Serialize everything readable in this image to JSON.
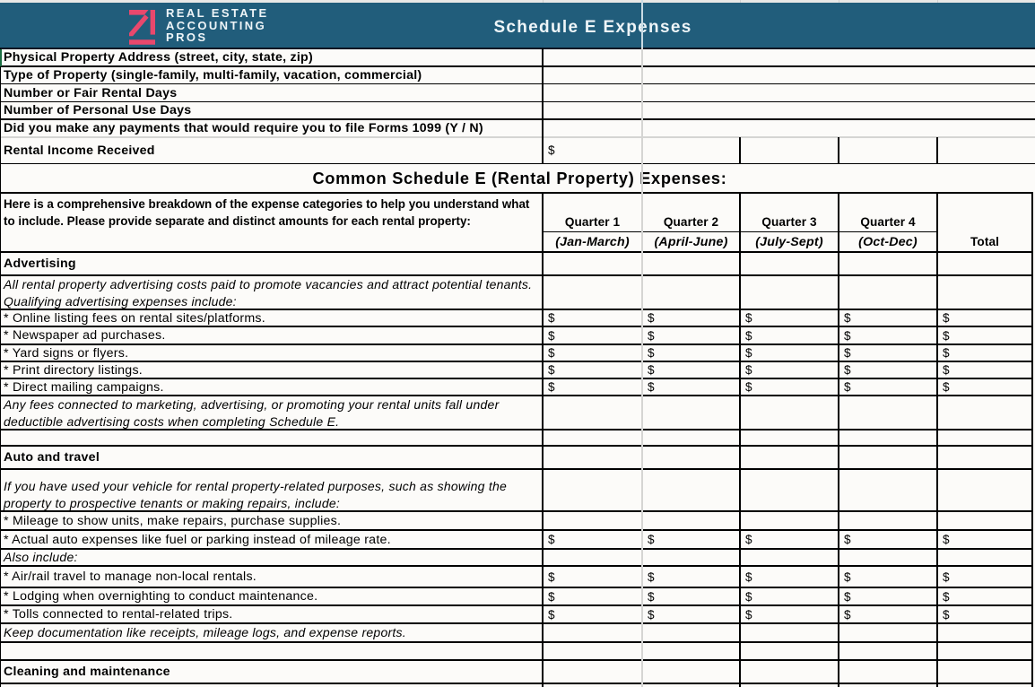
{
  "brand": {
    "name_line1": "REAL ESTATE",
    "name_line2": "ACCOUNTING",
    "name_line3": "PROS",
    "logo_icon": "arrow-chart-icon",
    "logo_color": "#e8486d",
    "banner_color": "#215d7b",
    "banner_text_color": "#eef5f8"
  },
  "banner": {
    "title": "Schedule E Expenses"
  },
  "fields": [
    {
      "label": "Physical Property Address (street, city, state, zip)",
      "value": ""
    },
    {
      "label": "Type of Property (single-family, multi-family, vacation, commercial)",
      "value": ""
    },
    {
      "label": "Number or Fair Rental Days",
      "value": ""
    },
    {
      "label": "Number of Personal Use Days",
      "value": ""
    },
    {
      "label": "Did you make any payments that would require you to file Forms 1099 (Y / N)",
      "value": ""
    }
  ],
  "income_row": {
    "label": "Rental Income Received",
    "q1": "$",
    "q2": "",
    "q3": "",
    "q4": "",
    "total": ""
  },
  "section_title": "Common Schedule E (Rental Property) Expenses:",
  "expense_table": {
    "intro_line1": "Here is a comprehensive breakdown of the expense categories to help you understand what",
    "intro_line2": "to include. Please provide separate and distinct amounts for each rental property:",
    "columns": [
      {
        "label": "Quarter 1",
        "sub": "(Jan-March)"
      },
      {
        "label": "Quarter 2",
        "sub": "(April-June)"
      },
      {
        "label": "Quarter 3",
        "sub": "(July-Sept)"
      },
      {
        "label": "Quarter 4",
        "sub": "(Oct-Dec)"
      }
    ],
    "total_label": "Total"
  },
  "rows": [
    {
      "kind": "section",
      "label": "Advertising"
    },
    {
      "kind": "desc",
      "line1": "All rental property advertising costs paid to promote vacancies and attract potential tenants.",
      "line2": "Qualifying advertising expenses include:"
    },
    {
      "kind": "item",
      "label": "* Online listing fees on rental sites/platforms.",
      "q1": "$",
      "q2": "$",
      "q3": "$",
      "q4": "$",
      "total": "$"
    },
    {
      "kind": "item",
      "label": "* Newspaper ad purchases.",
      "q1": "$",
      "q2": "$",
      "q3": "$",
      "q4": "$",
      "total": "$"
    },
    {
      "kind": "item",
      "label": "* Yard signs or flyers.",
      "q1": "$",
      "q2": "$",
      "q3": "$",
      "q4": "$",
      "total": "$"
    },
    {
      "kind": "item",
      "label": "* Print directory listings.",
      "q1": "$",
      "q2": "$",
      "q3": "$",
      "q4": "$",
      "total": "$"
    },
    {
      "kind": "item",
      "label": "* Direct mailing campaigns.",
      "q1": "$",
      "q2": "$",
      "q3": "$",
      "q4": "$",
      "total": "$"
    },
    {
      "kind": "desc",
      "line1": "Any fees connected to marketing, advertising, or promoting your rental units fall under",
      "line2": "deductible advertising costs when completing Schedule E."
    },
    {
      "kind": "empty"
    },
    {
      "kind": "section",
      "label": "Auto and travel"
    },
    {
      "kind": "desc",
      "line1": "If you have used your vehicle for rental property-related purposes, such as showing the",
      "line2": "property to prospective tenants or making repairs, include:"
    },
    {
      "kind": "item",
      "label": "* Mileage to show units, make repairs, purchase supplies.",
      "q1": "",
      "q2": "",
      "q3": "",
      "q4": "",
      "total": ""
    },
    {
      "kind": "item",
      "label": "* Actual auto expenses like fuel or parking instead of mileage rate.",
      "q1": "$",
      "q2": "$",
      "q3": "$",
      "q4": "$",
      "total": "$"
    },
    {
      "kind": "note",
      "label": "Also include:"
    },
    {
      "kind": "item",
      "label": "* Air/rail travel to manage non-local rentals.",
      "q1": "$",
      "q2": "$",
      "q3": "$",
      "q4": "$",
      "total": "$"
    },
    {
      "kind": "item",
      "label": "* Lodging when overnighting to conduct maintenance.",
      "q1": "$",
      "q2": "$",
      "q3": "$",
      "q4": "$",
      "total": "$"
    },
    {
      "kind": "item",
      "label": "* Tolls connected to rental-related trips.",
      "q1": "$",
      "q2": "$",
      "q3": "$",
      "q4": "$",
      "total": "$"
    },
    {
      "kind": "note",
      "label": "Keep documentation like receipts, mileage logs, and expense reports."
    },
    {
      "kind": "empty"
    },
    {
      "kind": "section",
      "label": "Cleaning and maintenance"
    },
    {
      "kind": "empty"
    }
  ]
}
